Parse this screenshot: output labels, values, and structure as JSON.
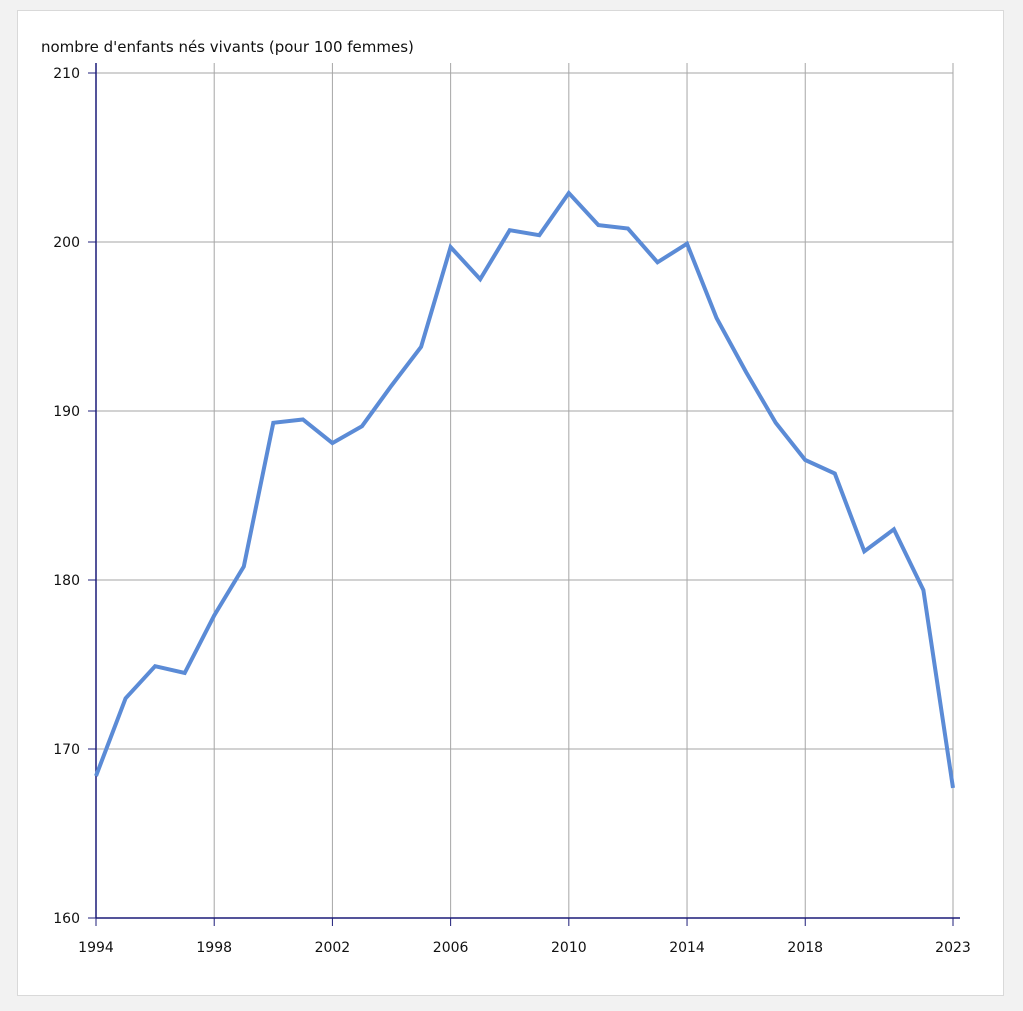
{
  "chart_data": {
    "type": "line",
    "title": "",
    "ylabel": "nombre d'enfants nés vivants (pour 100 femmes)",
    "xlabel": "",
    "xlim": [
      1994,
      2023
    ],
    "ylim": [
      160,
      210
    ],
    "x_ticks": [
      "1994",
      "1998",
      "2002",
      "2006",
      "2010",
      "2014",
      "2018",
      "2023"
    ],
    "y_ticks": [
      "160",
      "170",
      "180",
      "190",
      "200",
      "210"
    ],
    "grid": true,
    "legend": "none",
    "series": [
      {
        "color": "#5b8bd6",
        "x": [
          1994,
          1995,
          1996,
          1997,
          1998,
          1999,
          2000,
          2001,
          2002,
          2003,
          2004,
          2005,
          2006,
          2007,
          2008,
          2009,
          2010,
          2011,
          2012,
          2013,
          2014,
          2015,
          2016,
          2017,
          2018,
          2019,
          2020,
          2021,
          2022,
          2023
        ],
        "y": [
          168.4,
          173.0,
          174.9,
          174.5,
          177.9,
          180.8,
          189.3,
          189.5,
          188.1,
          189.1,
          191.5,
          193.8,
          199.7,
          197.8,
          200.7,
          200.4,
          202.9,
          201.0,
          200.8,
          198.8,
          199.9,
          195.5,
          192.3,
          189.3,
          187.1,
          186.3,
          181.7,
          183.0,
          179.4,
          167.7
        ]
      }
    ]
  },
  "colors": {
    "grid": "#a6a6a6",
    "axis": "#1c1c78",
    "line": "#5b8bd6",
    "background": "#ffffff",
    "page": "#f2f2f2"
  }
}
